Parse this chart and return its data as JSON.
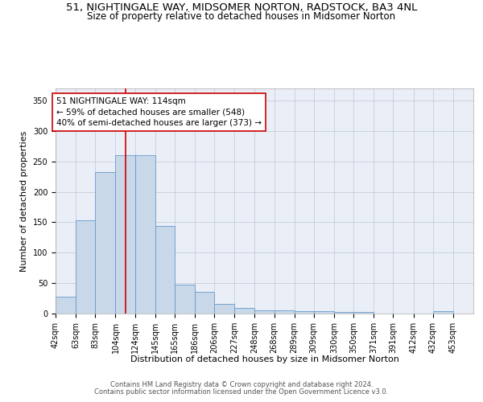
{
  "title_line1": "51, NIGHTINGALE WAY, MIDSOMER NORTON, RADSTOCK, BA3 4NL",
  "title_line2": "Size of property relative to detached houses in Midsomer Norton",
  "xlabel": "Distribution of detached houses by size in Midsomer Norton",
  "ylabel": "Number of detached properties",
  "bin_labels": [
    "42sqm",
    "63sqm",
    "83sqm",
    "104sqm",
    "124sqm",
    "145sqm",
    "165sqm",
    "186sqm",
    "206sqm",
    "227sqm",
    "248sqm",
    "268sqm",
    "289sqm",
    "309sqm",
    "330sqm",
    "350sqm",
    "371sqm",
    "391sqm",
    "412sqm",
    "432sqm",
    "453sqm"
  ],
  "bar_values": [
    28,
    153,
    232,
    260,
    260,
    144,
    48,
    36,
    16,
    9,
    5,
    5,
    4,
    4,
    3,
    2,
    0,
    0,
    0,
    4,
    0
  ],
  "bin_edges": [
    42,
    63,
    83,
    104,
    124,
    145,
    165,
    186,
    206,
    227,
    248,
    268,
    289,
    309,
    330,
    350,
    371,
    391,
    412,
    432,
    453,
    474
  ],
  "bar_color": "#c8d8e8",
  "bar_edge_color": "#6699cc",
  "property_line_x": 114,
  "property_line_color": "#cc0000",
  "annotation_text": "51 NIGHTINGALE WAY: 114sqm\n← 59% of detached houses are smaller (548)\n40% of semi-detached houses are larger (373) →",
  "annotation_box_color": "#ffffff",
  "annotation_box_edge_color": "#cc0000",
  "ylim": [
    0,
    370
  ],
  "yticks": [
    0,
    50,
    100,
    150,
    200,
    250,
    300,
    350
  ],
  "background_color": "#eaeff7",
  "footer_line1": "Contains HM Land Registry data © Crown copyright and database right 2024.",
  "footer_line2": "Contains public sector information licensed under the Open Government Licence v3.0.",
  "title_fontsize": 9.5,
  "subtitle_fontsize": 8.5,
  "label_fontsize": 8,
  "tick_fontsize": 7,
  "annotation_fontsize": 7.5,
  "footer_fontsize": 6
}
